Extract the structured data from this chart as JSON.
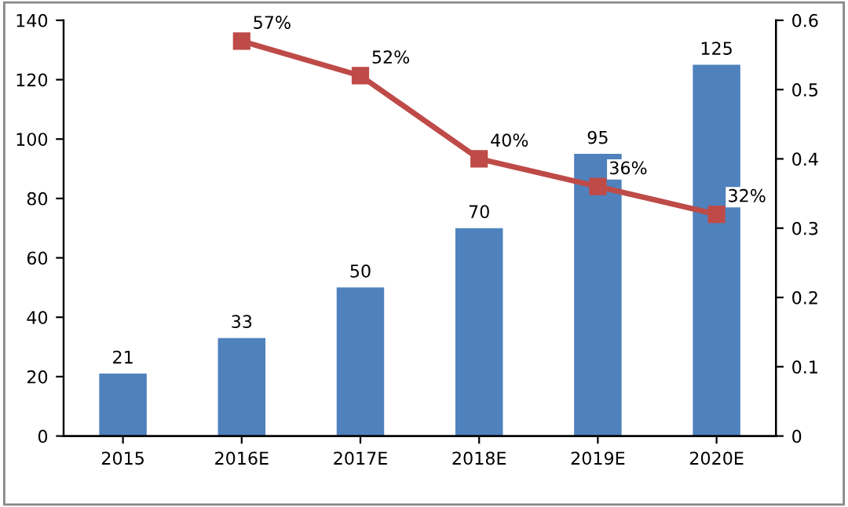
{
  "chart_data": {
    "type": "bar",
    "categories": [
      "2015",
      "2016E",
      "2017E",
      "2018E",
      "2019E",
      "2020E"
    ],
    "series": [
      {
        "color": "#4f81bd",
        "values": [
          21,
          33,
          50,
          70,
          95,
          125
        ],
        "data_labels": true
      },
      {
        "type": "line",
        "axis": "y2",
        "color": "#be4b48",
        "marker": "square",
        "line_style": "solid",
        "values": [
          null,
          0.57,
          0.52,
          0.4,
          0.36,
          0.32
        ],
        "value_labels": [
          null,
          "57%",
          "52%",
          "40%",
          "36%",
          "32%"
        ]
      }
    ],
    "ylim": [
      0,
      140
    ],
    "yticks": [
      0,
      20,
      40,
      60,
      80,
      100,
      120,
      140
    ],
    "y2lim": [
      0,
      0.6
    ],
    "y2ticks": [
      0,
      0.1,
      0.2,
      0.3,
      0.4,
      0.5,
      0.6
    ],
    "grid": false
  }
}
